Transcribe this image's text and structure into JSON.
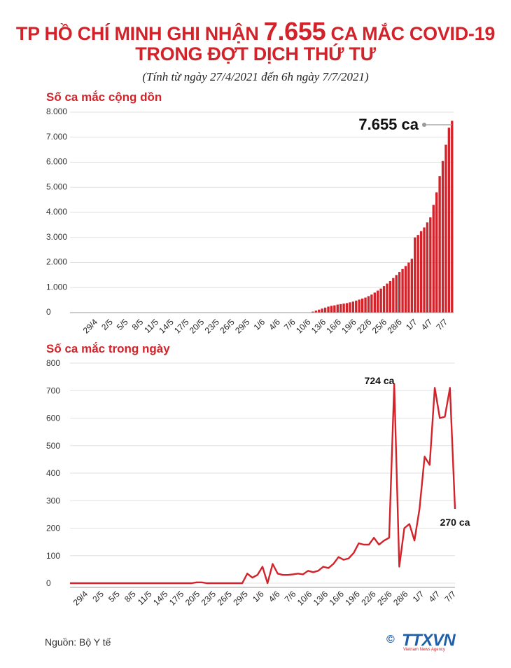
{
  "header": {
    "title_prefix": "TP HỒ CHÍ MINH GHI NHẬN ",
    "title_highlight": "7.655",
    "title_suffix": " CA MẮC COVID-19",
    "title_line2": "TRONG ĐỢT DỊCH THỨ TƯ",
    "subtitle": "(Tính từ ngày 27/4/2021 đến 6h ngày 7/7/2021)"
  },
  "footer": {
    "source": "Nguồn: Bộ Y tế",
    "logo_text": "TTXVN",
    "logo_sub": "Vietnam News Agency",
    "logo_icon": "copyright-icon"
  },
  "colors": {
    "accent": "#d2232a",
    "bar": "#d2232a",
    "line": "#d2232a",
    "grid": "#e2e2e2"
  },
  "chart_data": [
    {
      "type": "bar",
      "title": "Số ca mắc cộng dồn",
      "xlabel": "",
      "ylabel": "",
      "ylim": [
        0,
        8000
      ],
      "yticks": [
        "8.000",
        "7.000",
        "6.000",
        "5.000",
        "4.000",
        "3.000",
        "2.000",
        "1.000",
        "0"
      ],
      "ytick_values": [
        8000,
        7000,
        6000,
        5000,
        4000,
        3000,
        2000,
        1000,
        0
      ],
      "xtick_labels": [
        "29/4",
        "2/5",
        "5/5",
        "8/5",
        "11/5",
        "14/5",
        "17/5",
        "20/5",
        "23/5",
        "26/5",
        "29/5",
        "1/6",
        "4/6",
        "7/6",
        "10/6",
        "13/6",
        "16/6",
        "19/6",
        "22/6",
        "25/6",
        "28/6",
        "1/7",
        "4/7",
        "7/7"
      ],
      "annotation": "7.655 ca",
      "grid": true,
      "values": [
        0,
        0,
        0,
        0,
        0,
        0,
        0,
        0,
        0,
        0,
        0,
        0,
        0,
        0,
        0,
        0,
        0,
        0,
        0,
        0,
        0,
        0,
        0,
        0,
        0,
        0,
        0,
        0,
        0,
        0,
        0,
        0,
        0,
        0,
        0,
        0,
        0,
        0,
        0,
        0,
        0,
        0,
        0,
        0,
        0,
        0,
        0,
        0,
        0,
        0,
        0,
        0,
        0,
        0,
        0,
        0,
        0,
        0,
        0,
        0,
        0,
        0,
        0,
        0,
        0,
        0,
        0,
        0,
        0,
        0,
        0,
        0,
        0,
        0,
        0,
        0,
        0,
        0,
        40,
        80,
        120,
        160,
        200,
        240,
        270,
        290,
        320,
        340,
        360,
        380,
        410,
        440,
        480,
        520,
        560,
        600,
        660,
        720,
        800,
        880,
        960,
        1060,
        1160,
        1260,
        1380,
        1500,
        1620,
        1740,
        1860,
        2000,
        2150,
        3000,
        3100,
        3250,
        3400,
        3600,
        3800,
        4300,
        4800,
        5450,
        6050,
        6700,
        7380,
        7655
      ]
    },
    {
      "type": "line",
      "title": "Số ca mắc trong ngày",
      "xlabel": "",
      "ylabel": "",
      "ylim": [
        0,
        800
      ],
      "yticks": [
        "800",
        "700",
        "600",
        "500",
        "400",
        "300",
        "200",
        "100",
        "0"
      ],
      "ytick_values": [
        800,
        700,
        600,
        500,
        400,
        300,
        200,
        100,
        0
      ],
      "xtick_labels": [
        "29/4",
        "2/5",
        "5/5",
        "8/5",
        "11/5",
        "14/5",
        "17/5",
        "20/5",
        "23/5",
        "26/5",
        "29/5",
        "1/6",
        "4/6",
        "7/6",
        "10/6",
        "13/6",
        "16/6",
        "19/6",
        "22/6",
        "25/6",
        "28/6",
        "1/7",
        "4/7",
        "7/7"
      ],
      "annotations": [
        "724 ca",
        "270 ca"
      ],
      "grid": true,
      "values": [
        0,
        0,
        0,
        0,
        0,
        0,
        0,
        0,
        0,
        0,
        0,
        0,
        0,
        0,
        0,
        0,
        0,
        0,
        0,
        0,
        0,
        0,
        0,
        0,
        0,
        3,
        3,
        0,
        0,
        0,
        0,
        0,
        0,
        0,
        0,
        35,
        20,
        30,
        60,
        0,
        70,
        35,
        30,
        30,
        32,
        35,
        32,
        45,
        40,
        45,
        60,
        55,
        70,
        95,
        85,
        90,
        110,
        145,
        140,
        140,
        165,
        140,
        155,
        165,
        724,
        60,
        200,
        215,
        155,
        270,
        460,
        430,
        710,
        600,
        605,
        710,
        270
      ]
    }
  ]
}
